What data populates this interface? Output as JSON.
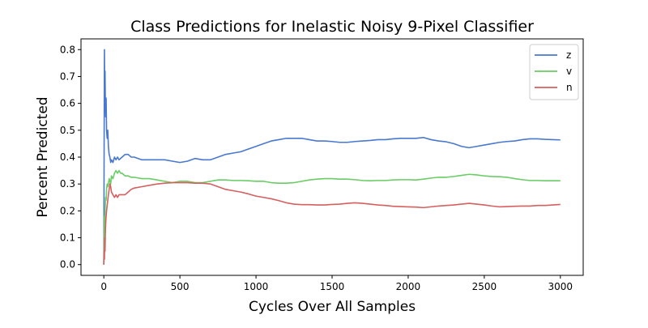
{
  "chart_data": {
    "type": "line",
    "title": "Class Predictions for Inelastic Noisy 9-Pixel Classifier",
    "xlabel": "Cycles Over All Samples",
    "ylabel": "Percent Predicted",
    "xlim": [
      -150,
      3150
    ],
    "ylim": [
      -0.04,
      0.84
    ],
    "xticks": [
      0,
      500,
      1000,
      1500,
      2000,
      2500,
      3000
    ],
    "yticks": [
      0.0,
      0.1,
      0.2,
      0.3,
      0.4,
      0.5,
      0.6,
      0.7,
      0.8
    ],
    "xtick_labels": [
      "0",
      "500",
      "1000",
      "1500",
      "2000",
      "2500",
      "3000"
    ],
    "ytick_labels": [
      "0.0",
      "0.1",
      "0.2",
      "0.3",
      "0.4",
      "0.5",
      "0.6",
      "0.7",
      "0.8"
    ],
    "grid": false,
    "legend_position": "top-right",
    "series": [
      {
        "name": "z",
        "color": "#4878cf",
        "points": [
          [
            0,
            0.0
          ],
          [
            2,
            0.45
          ],
          [
            4,
            0.8
          ],
          [
            6,
            0.62
          ],
          [
            8,
            0.72
          ],
          [
            10,
            0.6
          ],
          [
            12,
            0.55
          ],
          [
            15,
            0.62
          ],
          [
            18,
            0.5
          ],
          [
            22,
            0.47
          ],
          [
            26,
            0.5
          ],
          [
            30,
            0.44
          ],
          [
            35,
            0.41
          ],
          [
            40,
            0.4
          ],
          [
            45,
            0.38
          ],
          [
            50,
            0.39
          ],
          [
            60,
            0.38
          ],
          [
            70,
            0.4
          ],
          [
            80,
            0.39
          ],
          [
            90,
            0.4
          ],
          [
            100,
            0.39
          ],
          [
            120,
            0.4
          ],
          [
            140,
            0.41
          ],
          [
            160,
            0.41
          ],
          [
            180,
            0.4
          ],
          [
            200,
            0.4
          ],
          [
            250,
            0.39
          ],
          [
            300,
            0.39
          ],
          [
            350,
            0.39
          ],
          [
            400,
            0.39
          ],
          [
            450,
            0.385
          ],
          [
            500,
            0.38
          ],
          [
            550,
            0.385
          ],
          [
            600,
            0.395
          ],
          [
            650,
            0.39
          ],
          [
            700,
            0.39
          ],
          [
            750,
            0.4
          ],
          [
            800,
            0.41
          ],
          [
            850,
            0.415
          ],
          [
            900,
            0.42
          ],
          [
            950,
            0.43
          ],
          [
            1000,
            0.44
          ],
          [
            1050,
            0.45
          ],
          [
            1100,
            0.46
          ],
          [
            1150,
            0.465
          ],
          [
            1200,
            0.47
          ],
          [
            1250,
            0.47
          ],
          [
            1300,
            0.47
          ],
          [
            1350,
            0.465
          ],
          [
            1400,
            0.46
          ],
          [
            1450,
            0.46
          ],
          [
            1500,
            0.458
          ],
          [
            1550,
            0.455
          ],
          [
            1600,
            0.455
          ],
          [
            1650,
            0.458
          ],
          [
            1700,
            0.46
          ],
          [
            1750,
            0.462
          ],
          [
            1800,
            0.465
          ],
          [
            1850,
            0.465
          ],
          [
            1900,
            0.468
          ],
          [
            1950,
            0.47
          ],
          [
            2000,
            0.47
          ],
          [
            2050,
            0.47
          ],
          [
            2100,
            0.473
          ],
          [
            2150,
            0.465
          ],
          [
            2200,
            0.46
          ],
          [
            2250,
            0.457
          ],
          [
            2300,
            0.45
          ],
          [
            2350,
            0.44
          ],
          [
            2400,
            0.435
          ],
          [
            2450,
            0.44
          ],
          [
            2500,
            0.445
          ],
          [
            2550,
            0.45
          ],
          [
            2600,
            0.455
          ],
          [
            2650,
            0.458
          ],
          [
            2700,
            0.46
          ],
          [
            2750,
            0.465
          ],
          [
            2800,
            0.468
          ],
          [
            2850,
            0.468
          ],
          [
            2900,
            0.466
          ],
          [
            2950,
            0.465
          ],
          [
            3000,
            0.464
          ]
        ]
      },
      {
        "name": "v",
        "color": "#6acc65",
        "points": [
          [
            0,
            0.0
          ],
          [
            2,
            0.1
          ],
          [
            4,
            0.18
          ],
          [
            6,
            0.15
          ],
          [
            8,
            0.2
          ],
          [
            10,
            0.22
          ],
          [
            12,
            0.25
          ],
          [
            15,
            0.24
          ],
          [
            18,
            0.28
          ],
          [
            22,
            0.3
          ],
          [
            26,
            0.29
          ],
          [
            30,
            0.3
          ],
          [
            35,
            0.32
          ],
          [
            40,
            0.31
          ],
          [
            45,
            0.3
          ],
          [
            50,
            0.33
          ],
          [
            60,
            0.32
          ],
          [
            70,
            0.34
          ],
          [
            80,
            0.35
          ],
          [
            90,
            0.34
          ],
          [
            100,
            0.35
          ],
          [
            110,
            0.34
          ],
          [
            120,
            0.34
          ],
          [
            140,
            0.33
          ],
          [
            160,
            0.33
          ],
          [
            180,
            0.325
          ],
          [
            200,
            0.325
          ],
          [
            250,
            0.32
          ],
          [
            300,
            0.32
          ],
          [
            350,
            0.315
          ],
          [
            400,
            0.31
          ],
          [
            450,
            0.305
          ],
          [
            500,
            0.31
          ],
          [
            550,
            0.31
          ],
          [
            600,
            0.305
          ],
          [
            650,
            0.305
          ],
          [
            700,
            0.31
          ],
          [
            750,
            0.315
          ],
          [
            800,
            0.315
          ],
          [
            850,
            0.313
          ],
          [
            900,
            0.313
          ],
          [
            950,
            0.312
          ],
          [
            1000,
            0.31
          ],
          [
            1050,
            0.31
          ],
          [
            1100,
            0.305
          ],
          [
            1150,
            0.303
          ],
          [
            1200,
            0.303
          ],
          [
            1250,
            0.305
          ],
          [
            1300,
            0.31
          ],
          [
            1350,
            0.315
          ],
          [
            1400,
            0.318
          ],
          [
            1450,
            0.32
          ],
          [
            1500,
            0.32
          ],
          [
            1550,
            0.318
          ],
          [
            1600,
            0.318
          ],
          [
            1650,
            0.316
          ],
          [
            1700,
            0.313
          ],
          [
            1750,
            0.312
          ],
          [
            1800,
            0.313
          ],
          [
            1850,
            0.313
          ],
          [
            1900,
            0.315
          ],
          [
            1950,
            0.316
          ],
          [
            2000,
            0.316
          ],
          [
            2050,
            0.315
          ],
          [
            2100,
            0.318
          ],
          [
            2150,
            0.322
          ],
          [
            2200,
            0.325
          ],
          [
            2250,
            0.325
          ],
          [
            2300,
            0.328
          ],
          [
            2350,
            0.332
          ],
          [
            2400,
            0.336
          ],
          [
            2450,
            0.334
          ],
          [
            2500,
            0.33
          ],
          [
            2550,
            0.328
          ],
          [
            2600,
            0.327
          ],
          [
            2650,
            0.325
          ],
          [
            2700,
            0.32
          ],
          [
            2750,
            0.316
          ],
          [
            2800,
            0.313
          ],
          [
            2850,
            0.313
          ],
          [
            2900,
            0.312
          ],
          [
            2950,
            0.312
          ],
          [
            3000,
            0.312
          ]
        ]
      },
      {
        "name": "n",
        "color": "#d65f5f",
        "points": [
          [
            0,
            0.0
          ],
          [
            2,
            0.05
          ],
          [
            4,
            0.02
          ],
          [
            6,
            0.1
          ],
          [
            8,
            0.05
          ],
          [
            10,
            0.12
          ],
          [
            12,
            0.15
          ],
          [
            15,
            0.18
          ],
          [
            18,
            0.2
          ],
          [
            22,
            0.22
          ],
          [
            26,
            0.24
          ],
          [
            30,
            0.26
          ],
          [
            35,
            0.28
          ],
          [
            40,
            0.3
          ],
          [
            45,
            0.29
          ],
          [
            50,
            0.27
          ],
          [
            60,
            0.26
          ],
          [
            70,
            0.25
          ],
          [
            80,
            0.26
          ],
          [
            90,
            0.25
          ],
          [
            100,
            0.26
          ],
          [
            120,
            0.26
          ],
          [
            140,
            0.26
          ],
          [
            160,
            0.27
          ],
          [
            180,
            0.28
          ],
          [
            200,
            0.285
          ],
          [
            250,
            0.29
          ],
          [
            300,
            0.295
          ],
          [
            350,
            0.3
          ],
          [
            400,
            0.303
          ],
          [
            450,
            0.305
          ],
          [
            500,
            0.305
          ],
          [
            550,
            0.305
          ],
          [
            600,
            0.303
          ],
          [
            650,
            0.303
          ],
          [
            700,
            0.3
          ],
          [
            750,
            0.29
          ],
          [
            800,
            0.28
          ],
          [
            850,
            0.275
          ],
          [
            900,
            0.27
          ],
          [
            950,
            0.263
          ],
          [
            1000,
            0.255
          ],
          [
            1050,
            0.25
          ],
          [
            1100,
            0.245
          ],
          [
            1150,
            0.238
          ],
          [
            1200,
            0.23
          ],
          [
            1250,
            0.225
          ],
          [
            1300,
            0.223
          ],
          [
            1350,
            0.223
          ],
          [
            1400,
            0.222
          ],
          [
            1450,
            0.222
          ],
          [
            1500,
            0.224
          ],
          [
            1550,
            0.225
          ],
          [
            1600,
            0.228
          ],
          [
            1650,
            0.23
          ],
          [
            1700,
            0.228
          ],
          [
            1750,
            0.225
          ],
          [
            1800,
            0.222
          ],
          [
            1850,
            0.22
          ],
          [
            1900,
            0.217
          ],
          [
            1950,
            0.216
          ],
          [
            2000,
            0.215
          ],
          [
            2050,
            0.214
          ],
          [
            2100,
            0.212
          ],
          [
            2150,
            0.215
          ],
          [
            2200,
            0.218
          ],
          [
            2250,
            0.22
          ],
          [
            2300,
            0.222
          ],
          [
            2350,
            0.225
          ],
          [
            2400,
            0.228
          ],
          [
            2450,
            0.225
          ],
          [
            2500,
            0.222
          ],
          [
            2550,
            0.218
          ],
          [
            2600,
            0.215
          ],
          [
            2650,
            0.216
          ],
          [
            2700,
            0.217
          ],
          [
            2750,
            0.218
          ],
          [
            2800,
            0.218
          ],
          [
            2850,
            0.22
          ],
          [
            2900,
            0.22
          ],
          [
            2950,
            0.222
          ],
          [
            3000,
            0.224
          ]
        ]
      }
    ]
  }
}
